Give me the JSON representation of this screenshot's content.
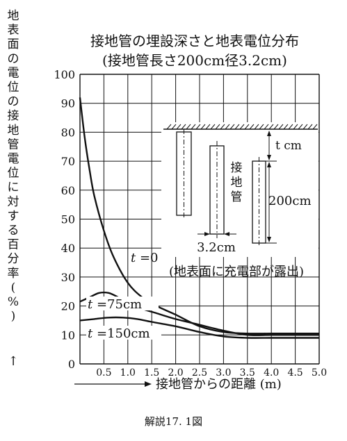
{
  "chart_data": {
    "type": "line",
    "title": "接地管の埋設深さと地表電位分布",
    "subtitle": "(接地管長さ200cm径3.2cm)",
    "xlabel": "接地管からの距離 (m)",
    "ylabel": "地表面の電位の接地管電位に対する百分率(%)",
    "xlim": [
      0,
      5.0
    ],
    "ylim": [
      0,
      100
    ],
    "grid": true,
    "x_ticks": [
      "0.5",
      "1.0",
      "1.5",
      "2.0",
      "2.5",
      "3.0",
      "3.5",
      "4.0",
      "4.5",
      "5.0"
    ],
    "y_ticks": [
      "0",
      "10",
      "20",
      "30",
      "40",
      "50",
      "60",
      "70",
      "80",
      "90",
      "100"
    ],
    "series": [
      {
        "name": "t =0",
        "x": [
          0,
          0.1,
          0.2,
          0.3,
          0.5,
          0.7,
          1.0,
          1.3,
          1.6,
          2.0,
          2.5,
          3.0,
          3.5,
          4.0,
          4.5,
          5.0
        ],
        "y": [
          92,
          78,
          67,
          58,
          46,
          37,
          28,
          23,
          20,
          17,
          13,
          11,
          10.5,
          10.5,
          10.5,
          10.5
        ]
      },
      {
        "name": "t =75cm",
        "x": [
          0,
          0.2,
          0.4,
          0.6,
          0.8,
          1.0,
          1.3,
          1.6,
          2.0,
          2.5,
          3.0,
          3.5,
          4.0,
          4.5,
          5.0
        ],
        "y": [
          21.5,
          23,
          24.5,
          24.5,
          23,
          21,
          19,
          17.5,
          15.5,
          13.5,
          11.5,
          10,
          10,
          10,
          10
        ]
      },
      {
        "name": "t =150cm",
        "x": [
          0,
          0.3,
          0.6,
          0.9,
          1.2,
          1.5,
          2.0,
          2.5,
          3.0,
          3.5,
          4.0,
          4.5,
          5.0
        ],
        "y": [
          15,
          15.5,
          16,
          16,
          15.5,
          14.5,
          13,
          11,
          9.5,
          9,
          9,
          9,
          9
        ]
      }
    ],
    "annotations": {
      "note": "(地表面に充電部が露出)",
      "depth": "t cm",
      "length": "200cm",
      "pipe": "接地管",
      "diameter": "3.2cm"
    }
  },
  "caption": "解説17. 1図"
}
